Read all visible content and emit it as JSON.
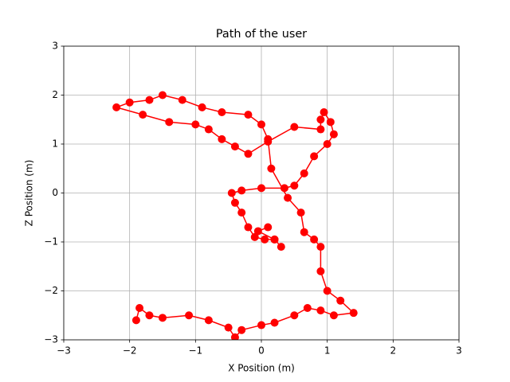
{
  "chart_data": {
    "type": "line",
    "title": "Path of the user",
    "x_label": "X Position (m)",
    "y_label": "Z Position (m)",
    "color": "#ff0000",
    "grid": true,
    "markers": true,
    "xlim": [
      -3,
      3
    ],
    "ylim": [
      -3,
      3
    ],
    "xticks": [
      {
        "value": -3,
        "label": "−3"
      },
      {
        "value": -2,
        "label": "−2"
      },
      {
        "value": -1,
        "label": "−1"
      },
      0,
      1,
      2,
      3
    ],
    "yticks": [
      {
        "value": -3,
        "label": "−3"
      },
      {
        "value": -2,
        "label": "−2"
      },
      {
        "value": -1,
        "label": "−1"
      },
      0,
      1,
      2,
      3
    ],
    "x": [
      0.1,
      -0.05,
      0.2,
      0.3,
      0.2,
      0.05,
      -0.1,
      -0.2,
      -0.3,
      -0.4,
      -0.45,
      -0.3,
      0.0,
      0.35,
      0.5,
      0.65,
      0.8,
      1.0,
      1.1,
      1.05,
      0.95,
      0.9,
      0.9,
      0.5,
      0.1,
      -0.2,
      -0.4,
      -0.6,
      -0.8,
      -1.0,
      -1.4,
      -1.8,
      -2.2,
      -2.0,
      -1.7,
      -1.5,
      -1.2,
      -0.9,
      -0.6,
      -0.2,
      0.0,
      0.1,
      0.15,
      0.4,
      0.6,
      0.65,
      0.8,
      0.9,
      0.9,
      1.0,
      1.2,
      1.4,
      1.1,
      0.9,
      0.7,
      0.5,
      0.2,
      0.0,
      -0.3,
      -0.4,
      -0.5,
      -0.8,
      -1.1,
      -1.5,
      -1.7,
      -1.85,
      -1.9
    ],
    "values": [
      -0.7,
      -0.78,
      -0.95,
      -1.1,
      -0.95,
      -0.95,
      -0.9,
      -0.7,
      -0.4,
      -0.2,
      0.0,
      0.05,
      0.1,
      0.1,
      0.15,
      0.4,
      0.75,
      1.0,
      1.2,
      1.45,
      1.65,
      1.5,
      1.3,
      1.35,
      1.05,
      0.8,
      0.95,
      1.1,
      1.3,
      1.4,
      1.45,
      1.6,
      1.75,
      1.85,
      1.9,
      2.0,
      1.9,
      1.75,
      1.65,
      1.6,
      1.4,
      1.1,
      0.5,
      -0.1,
      -0.4,
      -0.8,
      -0.95,
      -1.1,
      -1.6,
      -2.0,
      -2.2,
      -2.45,
      -2.5,
      -2.4,
      -2.35,
      -2.5,
      -2.65,
      -2.7,
      -2.8,
      -2.95,
      -2.75,
      -2.6,
      -2.5,
      -2.55,
      -2.5,
      -2.35,
      -2.6
    ]
  }
}
